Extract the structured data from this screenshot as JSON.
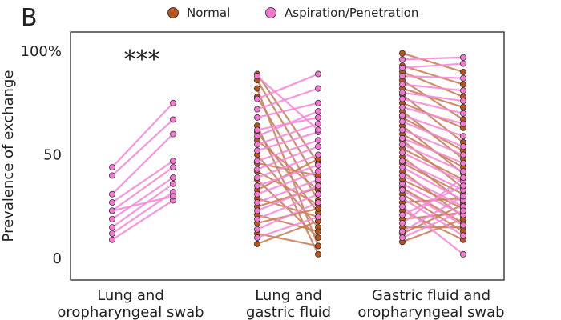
{
  "chart_data": {
    "type": "scatter",
    "panel_label": "B",
    "ylabel": "Prevalence of exchange",
    "ylim": [
      -10,
      110
    ],
    "y_ticks": [
      {
        "value": 0,
        "label": "0"
      },
      {
        "value": 50,
        "label": "50"
      },
      {
        "value": 100,
        "label": "100%"
      }
    ],
    "categories": [
      {
        "label": [
          "Lung and",
          "oropharyngeal swab"
        ],
        "annotation": "***"
      },
      {
        "label": [
          "Lung and",
          "gastric fluid"
        ],
        "annotation": ""
      },
      {
        "label": [
          "Gastric fluid and",
          "oropharyngeal swab"
        ],
        "annotation": ""
      }
    ],
    "legend": [
      {
        "label": "Normal",
        "color": "#b5541d"
      },
      {
        "label": "Aspiration/Penetration",
        "color": "#f279d0"
      }
    ],
    "colors": {
      "normal_point": "#b5541d",
      "aspiration_point": "#f279d0",
      "normal_line": "#c9825c",
      "aspiration_line": "#f58bd8",
      "point_edge": "#222222"
    },
    "pairs": [
      [
        {
          "group": "Aspiration/Penetration",
          "from": 44,
          "to": 75
        },
        {
          "group": "Aspiration/Penetration",
          "from": 40,
          "to": 67
        },
        {
          "group": "Aspiration/Penetration",
          "from": 31,
          "to": 60
        },
        {
          "group": "Aspiration/Penetration",
          "from": 27,
          "to": 47
        },
        {
          "group": "Aspiration/Penetration",
          "from": 23,
          "to": 44
        },
        {
          "group": "Aspiration/Penetration",
          "from": 19,
          "to": 39
        },
        {
          "group": "Aspiration/Penetration",
          "from": 15,
          "to": 36
        },
        {
          "group": "Aspiration/Penetration",
          "from": 12,
          "to": 32
        },
        {
          "group": "Aspiration/Penetration",
          "from": 9,
          "to": 28
        },
        {
          "group": "Aspiration/Penetration",
          "from": 23,
          "to": 30
        }
      ],
      [
        {
          "group": "Normal",
          "from": 89,
          "to": 46
        },
        {
          "group": "Normal",
          "from": 86,
          "to": 37
        },
        {
          "group": "Normal",
          "from": 82,
          "to": 6
        },
        {
          "group": "Normal",
          "from": 78,
          "to": 28
        },
        {
          "group": "Normal",
          "from": 64,
          "to": 2
        },
        {
          "group": "Normal",
          "from": 61,
          "to": 22
        },
        {
          "group": "Normal",
          "from": 57,
          "to": 33
        },
        {
          "group": "Normal",
          "from": 50,
          "to": 15
        },
        {
          "group": "Normal",
          "from": 46,
          "to": 40
        },
        {
          "group": "Normal",
          "from": 42,
          "to": 26
        },
        {
          "group": "Normal",
          "from": 38,
          "to": 10
        },
        {
          "group": "Normal",
          "from": 33,
          "to": 48
        },
        {
          "group": "Normal",
          "from": 29,
          "to": 20
        },
        {
          "group": "Normal",
          "from": 25,
          "to": 34
        },
        {
          "group": "Normal",
          "from": 21,
          "to": 13
        },
        {
          "group": "Normal",
          "from": 17,
          "to": 24
        },
        {
          "group": "Normal",
          "from": 12,
          "to": 6
        },
        {
          "group": "Normal",
          "from": 7,
          "to": 18
        },
        {
          "group": "Aspiration/Penetration",
          "from": 77,
          "to": 89
        },
        {
          "group": "Aspiration/Penetration",
          "from": 72,
          "to": 82
        },
        {
          "group": "Aspiration/Penetration",
          "from": 68,
          "to": 75
        },
        {
          "group": "Aspiration/Penetration",
          "from": 62,
          "to": 68
        },
        {
          "group": "Aspiration/Penetration",
          "from": 55,
          "to": 65
        },
        {
          "group": "Aspiration/Penetration",
          "from": 52,
          "to": 61
        },
        {
          "group": "Aspiration/Penetration",
          "from": 47,
          "to": 57
        },
        {
          "group": "Aspiration/Penetration",
          "from": 43,
          "to": 54
        },
        {
          "group": "Aspiration/Penetration",
          "from": 39,
          "to": 50
        },
        {
          "group": "Aspiration/Penetration",
          "from": 35,
          "to": 45
        },
        {
          "group": "Aspiration/Penetration",
          "from": 31,
          "to": 42
        },
        {
          "group": "Aspiration/Penetration",
          "from": 27,
          "to": 38
        },
        {
          "group": "Aspiration/Penetration",
          "from": 23,
          "to": 35
        },
        {
          "group": "Aspiration/Penetration",
          "from": 19,
          "to": 31
        },
        {
          "group": "Aspiration/Penetration",
          "from": 14,
          "to": 27
        },
        {
          "group": "Aspiration/Penetration",
          "from": 10,
          "to": 20
        },
        {
          "group": "Aspiration/Penetration",
          "from": 88,
          "to": 62
        },
        {
          "group": "Aspiration/Penetration",
          "from": 59,
          "to": 71
        }
      ],
      [
        {
          "group": "Normal",
          "from": 99,
          "to": 90
        },
        {
          "group": "Normal",
          "from": 93,
          "to": 84
        },
        {
          "group": "Normal",
          "from": 90,
          "to": 78
        },
        {
          "group": "Normal",
          "from": 86,
          "to": 67
        },
        {
          "group": "Normal",
          "from": 82,
          "to": 73
        },
        {
          "group": "Normal",
          "from": 79,
          "to": 56
        },
        {
          "group": "Normal",
          "from": 75,
          "to": 63
        },
        {
          "group": "Normal",
          "from": 71,
          "to": 48
        },
        {
          "group": "Normal",
          "from": 68,
          "to": 52
        },
        {
          "group": "Normal",
          "from": 64,
          "to": 41
        },
        {
          "group": "Normal",
          "from": 60,
          "to": 44
        },
        {
          "group": "Normal",
          "from": 57,
          "to": 34
        },
        {
          "group": "Normal",
          "from": 53,
          "to": 38
        },
        {
          "group": "Normal",
          "from": 49,
          "to": 27
        },
        {
          "group": "Normal",
          "from": 46,
          "to": 31
        },
        {
          "group": "Normal",
          "from": 42,
          "to": 20
        },
        {
          "group": "Normal",
          "from": 38,
          "to": 24
        },
        {
          "group": "Normal",
          "from": 34,
          "to": 17
        },
        {
          "group": "Normal",
          "from": 31,
          "to": 13
        },
        {
          "group": "Normal",
          "from": 27,
          "to": 29
        },
        {
          "group": "Normal",
          "from": 23,
          "to": 9
        },
        {
          "group": "Normal",
          "from": 19,
          "to": 22
        },
        {
          "group": "Normal",
          "from": 15,
          "to": 15
        },
        {
          "group": "Normal",
          "from": 12,
          "to": 26
        },
        {
          "group": "Normal",
          "from": 8,
          "to": 19
        },
        {
          "group": "Aspiration/Penetration",
          "from": 96,
          "to": 97
        },
        {
          "group": "Aspiration/Penetration",
          "from": 92,
          "to": 94
        },
        {
          "group": "Aspiration/Penetration",
          "from": 88,
          "to": 87
        },
        {
          "group": "Aspiration/Penetration",
          "from": 84,
          "to": 81
        },
        {
          "group": "Aspiration/Penetration",
          "from": 80,
          "to": 76
        },
        {
          "group": "Aspiration/Penetration",
          "from": 77,
          "to": 70
        },
        {
          "group": "Aspiration/Penetration",
          "from": 73,
          "to": 65
        },
        {
          "group": "Aspiration/Penetration",
          "from": 69,
          "to": 59
        },
        {
          "group": "Aspiration/Penetration",
          "from": 66,
          "to": 54
        },
        {
          "group": "Aspiration/Penetration",
          "from": 62,
          "to": 50
        },
        {
          "group": "Aspiration/Penetration",
          "from": 58,
          "to": 46
        },
        {
          "group": "Aspiration/Penetration",
          "from": 55,
          "to": 42
        },
        {
          "group": "Aspiration/Penetration",
          "from": 51,
          "to": 37
        },
        {
          "group": "Aspiration/Penetration",
          "from": 47,
          "to": 33
        },
        {
          "group": "Aspiration/Penetration",
          "from": 44,
          "to": 28
        },
        {
          "group": "Aspiration/Penetration",
          "from": 40,
          "to": 25
        },
        {
          "group": "Aspiration/Penetration",
          "from": 36,
          "to": 21
        },
        {
          "group": "Aspiration/Penetration",
          "from": 33,
          "to": 16
        },
        {
          "group": "Aspiration/Penetration",
          "from": 29,
          "to": 11
        },
        {
          "group": "Aspiration/Penetration",
          "from": 25,
          "to": 2
        },
        {
          "group": "Aspiration/Penetration",
          "from": 21,
          "to": 35
        },
        {
          "group": "Aspiration/Penetration",
          "from": 17,
          "to": 39
        },
        {
          "group": "Aspiration/Penetration",
          "from": 13,
          "to": 30
        },
        {
          "group": "Aspiration/Penetration",
          "from": 10,
          "to": 23
        }
      ]
    ]
  }
}
